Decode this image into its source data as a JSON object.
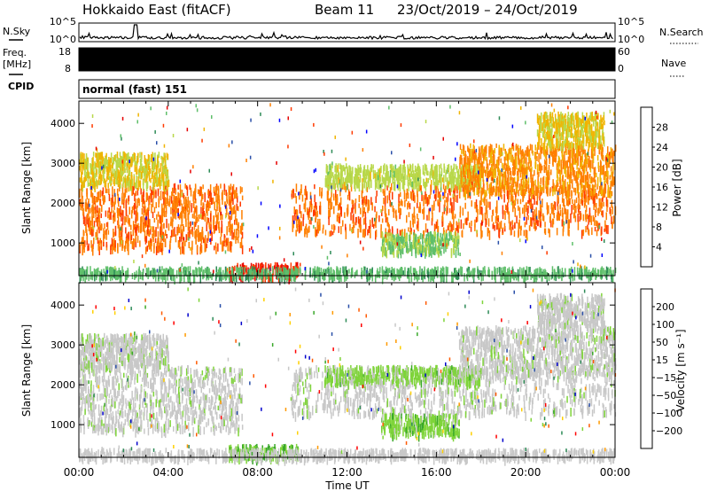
{
  "header": {
    "station": "Hokkaido East (fitACF)",
    "beam": "Beam 11",
    "date_range": "23/Oct/2019 – 24/Oct/2019"
  },
  "aux": {
    "nsky_label": "N.Sky",
    "nsky_ticks": [
      "10^5",
      "10^0"
    ],
    "nsearch_label": "N.Search",
    "nsearch_ticks": [
      "10^5",
      "10^0"
    ],
    "freq_label": "Freq.",
    "freq_unit": "[MHz]",
    "freq_ticks": [
      "18",
      "8"
    ],
    "nave_label": "Nave",
    "nave_ticks": [
      "60",
      "0"
    ],
    "cpid_label": "CPID",
    "cpid_value": "normal (fast) 151"
  },
  "chart_data": [
    {
      "type": "heatmap",
      "title": "",
      "xlabel": "Time UT",
      "ylabel": "Slant Range [km]",
      "x_ticks": [
        "00:00",
        "04:00",
        "08:00",
        "12:00",
        "16:00",
        "20:00",
        "00:00"
      ],
      "x_range_hours": [
        0,
        24
      ],
      "y_ticks": [
        1000,
        2000,
        3000,
        4000
      ],
      "ylim": [
        180,
        4560
      ],
      "colorbar": {
        "label": "Power [dB]",
        "ticks": [
          "28",
          "24",
          "20",
          "16",
          "12",
          "8",
          "4"
        ],
        "range": [
          0,
          32
        ],
        "colors": [
          "#0000ff",
          "#2a4fa8",
          "#2e8b57",
          "#5fbf6a",
          "#b8d84a",
          "#f0b400",
          "#ff7f00",
          "#ff3a00",
          "#e60000"
        ]
      },
      "regions": [
        {
          "t0": 0.0,
          "t1": 7.3,
          "r0": 900,
          "r1": 2500,
          "level": 24
        },
        {
          "t0": 0.0,
          "t1": 4.0,
          "r0": 2500,
          "r1": 3300,
          "level": 18
        },
        {
          "t0": 6.7,
          "t1": 9.8,
          "r0": 200,
          "r1": 520,
          "level": 28
        },
        {
          "t0": 9.5,
          "t1": 24.0,
          "r0": 1300,
          "r1": 2500,
          "level": 24
        },
        {
          "t0": 11.0,
          "t1": 18.0,
          "r0": 2500,
          "r1": 3000,
          "level": 16
        },
        {
          "t0": 13.5,
          "t1": 17.0,
          "r0": 800,
          "r1": 1300,
          "level": 14
        },
        {
          "t0": 17.0,
          "t1": 24.0,
          "r0": 2300,
          "r1": 3500,
          "level": 22
        },
        {
          "t0": 20.5,
          "t1": 23.5,
          "r0": 3500,
          "r1": 4300,
          "level": 18
        },
        {
          "t0": 0.0,
          "t1": 24.0,
          "r0": 200,
          "r1": 420,
          "level": 12
        }
      ]
    },
    {
      "type": "heatmap",
      "title": "",
      "xlabel": "Time UT",
      "ylabel": "Slant Range [km]",
      "x_ticks": [
        "00:00",
        "04:00",
        "08:00",
        "12:00",
        "16:00",
        "20:00",
        "00:00"
      ],
      "x_range_hours": [
        0,
        24
      ],
      "y_ticks": [
        1000,
        2000,
        3000,
        4000
      ],
      "ylim": [
        180,
        4560
      ],
      "colorbar": {
        "label": "Velocity [m s⁻¹]",
        "ticks": [
          "200",
          "100",
          "50",
          "15",
          "−15",
          "−50",
          "−100",
          "−200"
        ],
        "range": [
          -250,
          250
        ],
        "colors": [
          "#ff0000",
          "#ff5a00",
          "#ff9a00",
          "#ffd000",
          "#c8c8c8",
          "#c8c8c8",
          "#7fd43a",
          "#3aa82a",
          "#2e8b57",
          "#2a4fa8",
          "#0000cc"
        ]
      },
      "regions": [
        {
          "t0": 0.0,
          "t1": 7.3,
          "r0": 900,
          "r1": 2500,
          "level": 0
        },
        {
          "t0": 0.0,
          "t1": 4.0,
          "r0": 2500,
          "r1": 3300,
          "level": 0
        },
        {
          "t0": 6.7,
          "t1": 9.8,
          "r0": 200,
          "r1": 520,
          "level": 60
        },
        {
          "t0": 9.5,
          "t1": 24.0,
          "r0": 1300,
          "r1": 2500,
          "level": 0
        },
        {
          "t0": 11.0,
          "t1": 18.0,
          "r0": 2100,
          "r1": 2500,
          "level": 40
        },
        {
          "t0": 13.5,
          "t1": 17.0,
          "r0": 800,
          "r1": 1300,
          "level": 45
        },
        {
          "t0": 17.0,
          "t1": 24.0,
          "r0": 2300,
          "r1": 3500,
          "level": 0
        },
        {
          "t0": 20.5,
          "t1": 23.5,
          "r0": 3500,
          "r1": 4300,
          "level": 0
        },
        {
          "t0": 0.0,
          "t1": 24.0,
          "r0": 200,
          "r1": 420,
          "level": -20
        }
      ]
    }
  ]
}
